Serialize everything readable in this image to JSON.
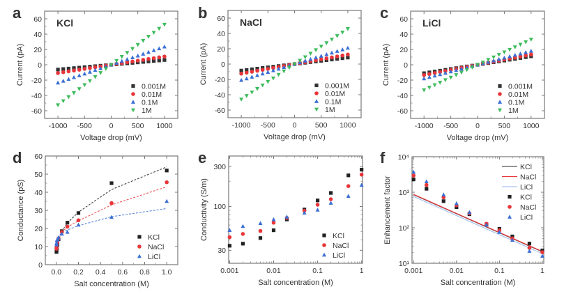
{
  "figure": {
    "panels": [
      "a",
      "b",
      "c",
      "d",
      "e",
      "f"
    ]
  },
  "chart_data": [
    {
      "id": "a",
      "panel_label": "a",
      "type": "scatter",
      "inset_title": "KCl",
      "xlabel": "Voltage drop (mV)",
      "ylabel": "Current (pA)",
      "xscale": "linear",
      "yscale": "linear",
      "xlim": [
        -1250,
        1250
      ],
      "ylim": [
        -70,
        70
      ],
      "xticks": [
        -1000,
        -500,
        0,
        500,
        1000
      ],
      "yticks": [
        -60,
        -40,
        -20,
        0,
        20,
        40,
        60
      ],
      "legend_position": "bottom-right",
      "x": [
        -1000,
        -900,
        -800,
        -700,
        -600,
        -500,
        -400,
        -300,
        -200,
        -100,
        0,
        100,
        200,
        300,
        400,
        500,
        600,
        700,
        800,
        900,
        1000
      ],
      "series": [
        {
          "name": "0.001M",
          "color": "#333333",
          "marker": "square",
          "slope_pA_per_V": 6.2
        },
        {
          "name": "0.01M",
          "color": "#e8353a",
          "marker": "circle",
          "slope_pA_per_V": 10.8
        },
        {
          "name": "0.1M",
          "color": "#3b6fd4",
          "marker": "triangle-up",
          "slope_pA_per_V": 23.5
        },
        {
          "name": "1M",
          "color": "#3dbb5c",
          "marker": "triangle-down",
          "slope_pA_per_V": 52.5
        }
      ]
    },
    {
      "id": "b",
      "panel_label": "b",
      "type": "scatter",
      "inset_title": "NaCl",
      "xlabel": "Voltage drop (mV)",
      "ylabel": "Current (pA)",
      "xscale": "linear",
      "yscale": "linear",
      "xlim": [
        -1250,
        1250
      ],
      "ylim": [
        -70,
        70
      ],
      "xticks": [
        -1000,
        -500,
        0,
        500,
        1000
      ],
      "yticks": [
        -60,
        -40,
        -20,
        0,
        20,
        40,
        60
      ],
      "legend_position": "bottom-right",
      "x": [
        -1000,
        -900,
        -800,
        -700,
        -600,
        -500,
        -400,
        -300,
        -200,
        -100,
        0,
        100,
        200,
        300,
        400,
        500,
        600,
        700,
        800,
        900,
        1000
      ],
      "series": [
        {
          "name": "0.001M",
          "color": "#333333",
          "marker": "square",
          "slope_pA_per_V": 8.5
        },
        {
          "name": "0.01M",
          "color": "#e8353a",
          "marker": "circle",
          "slope_pA_per_V": 12.5
        },
        {
          "name": "0.1M",
          "color": "#3b6fd4",
          "marker": "triangle-up",
          "slope_pA_per_V": 21.0
        },
        {
          "name": "1M",
          "color": "#3dbb5c",
          "marker": "triangle-down",
          "slope_pA_per_V": 46.0
        }
      ]
    },
    {
      "id": "c",
      "panel_label": "c",
      "type": "scatter",
      "inset_title": "LiCl",
      "xlabel": "Voltage drop (mV)",
      "ylabel": "Current (pA)",
      "xscale": "linear",
      "yscale": "linear",
      "xlim": [
        -1250,
        1250
      ],
      "ylim": [
        -70,
        70
      ],
      "xticks": [
        -1000,
        -500,
        0,
        500,
        1000
      ],
      "yticks": [
        -60,
        -40,
        -20,
        0,
        20,
        40,
        60
      ],
      "legend_position": "bottom-right",
      "x": [
        -1000,
        -900,
        -800,
        -700,
        -600,
        -500,
        -400,
        -300,
        -200,
        -100,
        0,
        100,
        200,
        300,
        400,
        500,
        600,
        700,
        800,
        900,
        1000
      ],
      "series": [
        {
          "name": "0.001M",
          "color": "#333333",
          "marker": "square",
          "slope_pA_per_V": 11.0
        },
        {
          "name": "0.01M",
          "color": "#e8353a",
          "marker": "circle",
          "slope_pA_per_V": 13.5
        },
        {
          "name": "0.1M",
          "color": "#3b6fd4",
          "marker": "triangle-up",
          "slope_pA_per_V": 18.0
        },
        {
          "name": "1M",
          "color": "#3dbb5c",
          "marker": "triangle-down",
          "slope_pA_per_V": 33.0
        }
      ]
    },
    {
      "id": "d",
      "panel_label": "d",
      "type": "scatter",
      "xlabel": "Salt concentration (M)",
      "ylabel": "Conductance (pS)",
      "xscale": "linear",
      "yscale": "linear",
      "xlim": [
        -0.1,
        1.1
      ],
      "ylim": [
        0,
        60
      ],
      "xticks": [
        0.0,
        0.2,
        0.4,
        0.6,
        0.8,
        1.0
      ],
      "xtick_labels": [
        "0.0",
        "0.2",
        "0.4",
        "0.6",
        "0.8",
        "1.0"
      ],
      "yticks": [
        0,
        10,
        20,
        30,
        40,
        50,
        60
      ],
      "legend_position": "bottom-right",
      "fit_lines": "dashed",
      "x": [
        0.001,
        0.002,
        0.005,
        0.01,
        0.02,
        0.05,
        0.1,
        0.2,
        0.5,
        1.0
      ],
      "series": [
        {
          "name": "KCl",
          "color": "#222222",
          "marker": "square",
          "values": [
            7.0,
            7.5,
            9.0,
            11.0,
            14.0,
            18.5,
            23.2,
            28.5,
            45.0,
            52.0
          ],
          "fit": [
            7.0,
            7.6,
            9.2,
            11.0,
            13.6,
            18.5,
            23.0,
            29.0,
            41.5,
            54.0
          ]
        },
        {
          "name": "NaCl",
          "color": "#e8353a",
          "marker": "circle",
          "values": [
            8.8,
            9.5,
            11.0,
            12.5,
            14.5,
            18.0,
            21.0,
            24.5,
            34.0,
            45.5
          ],
          "fit": [
            8.8,
            9.6,
            11.2,
            12.8,
            14.8,
            18.0,
            20.8,
            24.2,
            33.0,
            43.0
          ]
        },
        {
          "name": "LiCl",
          "color": "#3b6fd4",
          "marker": "triangle-up",
          "values": [
            11.0,
            12.0,
            13.5,
            14.0,
            15.0,
            17.0,
            18.0,
            22.0,
            26.2,
            35.0
          ],
          "fit": [
            11.0,
            12.0,
            13.5,
            14.5,
            15.8,
            17.5,
            19.2,
            21.5,
            26.5,
            31.0
          ]
        }
      ]
    },
    {
      "id": "e",
      "panel_label": "e",
      "type": "scatter",
      "xlabel": "Salt concentration (M)",
      "ylabel": "Conductivity (S/m)",
      "xscale": "log",
      "yscale": "log",
      "xlim": [
        0.00095,
        1.05
      ],
      "ylim": [
        21,
        400
      ],
      "xticks": [
        0.001,
        0.01,
        0.1,
        1
      ],
      "xtick_labels": [
        "0.001",
        "0.01",
        "0.1",
        "1"
      ],
      "yticks": [
        30,
        100,
        300
      ],
      "ytick_labels": [
        "30",
        "100",
        "300"
      ],
      "legend_position": "bottom-right",
      "x": [
        0.001,
        0.002,
        0.005,
        0.01,
        0.02,
        0.05,
        0.1,
        0.2,
        0.5,
        1.0
      ],
      "series": [
        {
          "name": "KCl",
          "color": "#222222",
          "marker": "square",
          "values": [
            34,
            36,
            42,
            52,
            70,
            92,
            118,
            145,
            235,
            275
          ]
        },
        {
          "name": "NaCl",
          "color": "#e8353a",
          "marker": "circle",
          "values": [
            43,
            47,
            51,
            64,
            73,
            89,
            105,
            122,
            175,
            240
          ]
        },
        {
          "name": "LiCl",
          "color": "#3b6fd4",
          "marker": "triangle-up",
          "values": [
            52,
            58,
            63,
            70,
            75,
            84,
            91,
            110,
            133,
            180
          ]
        }
      ]
    },
    {
      "id": "f",
      "panel_label": "f",
      "type": "scatter",
      "xlabel": "Salt concentration (M)",
      "ylabel": "Enhancement factor",
      "xscale": "log",
      "yscale": "log",
      "xlim": [
        0.00092,
        1.08
      ],
      "ylim": [
        10,
        10000
      ],
      "xticks": [
        0.001,
        0.01,
        0.1,
        1
      ],
      "xtick_labels": [
        "0.001",
        "0.01",
        "0.1",
        "1"
      ],
      "yticks": [
        10,
        100,
        1000,
        10000
      ],
      "ytick_labels": [
        "10¹",
        "10²",
        "10³",
        "10⁴"
      ],
      "legend_position": "top-right",
      "lines": [
        {
          "name": "KCl",
          "color": "#555555",
          "from": [
            0.001,
            850
          ],
          "to": [
            1.0,
            21
          ]
        },
        {
          "name": "NaCl",
          "color": "#e8353a",
          "from": [
            0.001,
            870
          ],
          "to": [
            1.0,
            21.5
          ]
        },
        {
          "name": "LiCl",
          "color": "#a9c4ee",
          "from": [
            0.001,
            760
          ],
          "to": [
            1.0,
            18.5
          ]
        }
      ],
      "x": [
        0.001,
        0.002,
        0.005,
        0.01,
        0.02,
        0.05,
        0.1,
        0.2,
        0.5,
        1.0
      ],
      "series": [
        {
          "name": "KCl",
          "color": "#222222",
          "marker": "square",
          "values": [
            2300,
            1250,
            560,
            380,
            240,
            125,
            93,
            57,
            36,
            23
          ]
        },
        {
          "name": "NaCl",
          "color": "#e8353a",
          "marker": "circle",
          "values": [
            2950,
            1600,
            720,
            430,
            255,
            130,
            85,
            50,
            27,
            20.5
          ]
        },
        {
          "name": "LiCl",
          "color": "#3b6fd4",
          "marker": "triangle-up",
          "values": [
            3700,
            2000,
            850,
            480,
            270,
            120,
            75,
            45,
            22,
            16
          ]
        }
      ]
    }
  ]
}
